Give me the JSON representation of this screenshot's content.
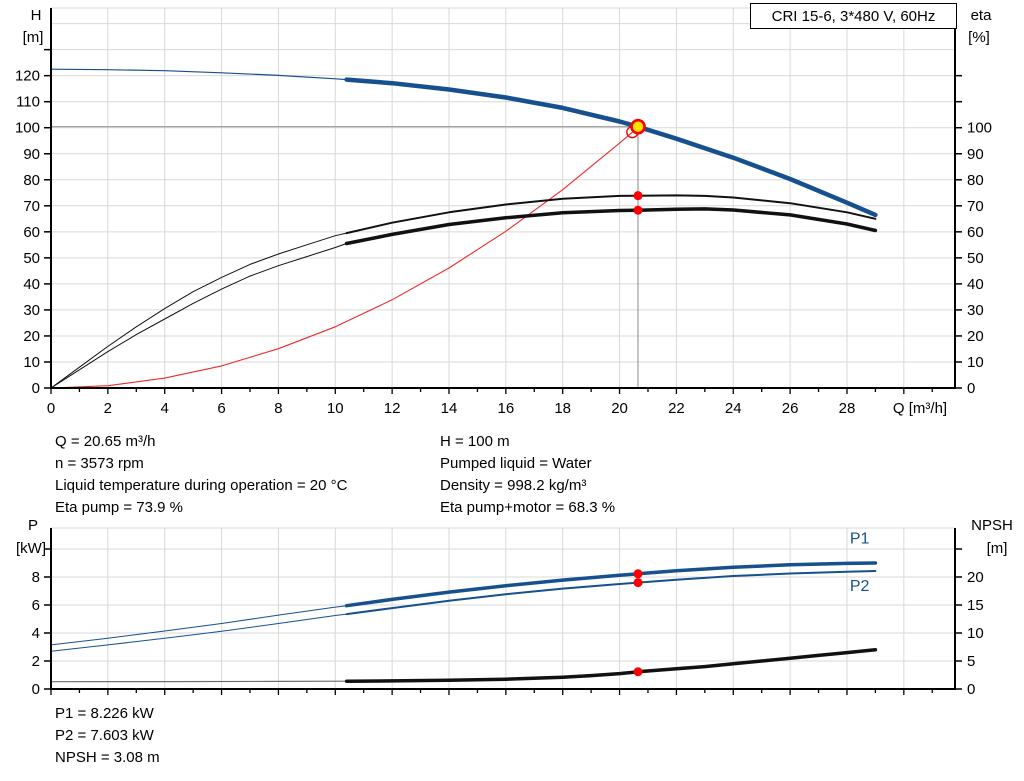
{
  "title_box": "CRI 15-6, 3*480 V, 60Hz",
  "colors": {
    "curve_blue": "#17508F",
    "curve_black": "#111111",
    "curve_red": "#ED2B2B",
    "marker_red": "#FF0000",
    "marker_yellow": "#FFE000",
    "grid": "#D9D9D9",
    "duty_line": "#8A8A8A",
    "npsh_low_gray": "#6F6F6F",
    "axis": "#000000"
  },
  "annotations": {
    "top_left": [
      "Q = 20.65 m³/h",
      "n = 3573 rpm",
      "Liquid temperature during operation = 20 °C",
      "Eta pump = 73.9 %"
    ],
    "top_right": [
      "H = 100 m",
      "Pumped liquid = Water",
      "Density = 998.2 kg/m³",
      "Eta pump+motor = 68.3 %"
    ],
    "bottom": [
      "P1 = 8.226 kW",
      "P2 = 7.603 kW",
      "NPSH = 3.08 m"
    ]
  },
  "chart_data": [
    {
      "id": "chart-qh",
      "type": "line",
      "title": "CRI 15-6, 3*480 V, 60Hz",
      "x": {
        "min": 0,
        "max": 31.8,
        "grid_step": 2,
        "grid_max": 30,
        "tick_step": 1,
        "tick_max": 31,
        "label_step": 2,
        "label_max": 28,
        "title": "Q [m³/h]"
      },
      "left": {
        "min": 0,
        "max": 146,
        "grid_step": 10,
        "grid_max": 140,
        "tick_max": 130,
        "label_max": 120,
        "title": [
          "H",
          "[m]"
        ]
      },
      "right": {
        "min": 0,
        "max": 146,
        "grid_step": 10,
        "tick_max": 120,
        "label_max": 100,
        "title": [
          "eta",
          "[%]"
        ]
      },
      "series": [
        {
          "name": "duty-vertical-line",
          "axis": "left",
          "color": "#8A8A8A",
          "width": 1,
          "points": [
            [
              20.65,
              0
            ],
            [
              20.65,
              100.4
            ]
          ]
        },
        {
          "name": "duty-horizontal-line",
          "axis": "left",
          "color": "#8A8A8A",
          "width": 1,
          "points": [
            [
              0,
              100.4
            ],
            [
              20.65,
              100.4
            ]
          ]
        },
        {
          "name": "system-curve",
          "axis": "left",
          "color": "#ED2B2B",
          "width": 1.1,
          "points": [
            [
              0,
              0
            ],
            [
              2,
              0.9
            ],
            [
              4,
              3.8
            ],
            [
              6,
              8.5
            ],
            [
              8,
              15.1
            ],
            [
              10,
              23.5
            ],
            [
              12,
              33.9
            ],
            [
              14,
              46.1
            ],
            [
              16,
              60.2
            ],
            [
              18,
              76.2
            ],
            [
              20,
              94.1
            ],
            [
              20.45,
              98.3
            ]
          ]
        },
        {
          "name": "eta-pump-curve-low",
          "axis": "right",
          "color": "#111111",
          "width": 1,
          "points": [
            [
              0,
              0
            ],
            [
              1,
              8
            ],
            [
              2,
              16
            ],
            [
              3,
              23.5
            ],
            [
              4,
              30.5
            ],
            [
              5,
              37
            ],
            [
              6,
              42.5
            ],
            [
              7,
              47.5
            ],
            [
              8,
              51.5
            ],
            [
              9,
              55
            ],
            [
              10,
              58.5
            ],
            [
              10.4,
              59.5
            ]
          ]
        },
        {
          "name": "eta-pump-curve",
          "axis": "right",
          "color": "#111111",
          "width": 2,
          "points": [
            [
              10.4,
              59.5
            ],
            [
              12,
              63.5
            ],
            [
              14,
              67.5
            ],
            [
              16,
              70.5
            ],
            [
              18,
              72.7
            ],
            [
              20,
              73.8
            ],
            [
              20.65,
              73.9
            ],
            [
              22,
              74
            ],
            [
              23,
              73.8
            ],
            [
              24,
              73.2
            ],
            [
              26,
              71
            ],
            [
              28,
              67.5
            ],
            [
              29,
              65
            ]
          ]
        },
        {
          "name": "eta-pump-motor-curve-low",
          "axis": "right",
          "color": "#111111",
          "width": 1,
          "points": [
            [
              0,
              0
            ],
            [
              1,
              7
            ],
            [
              2,
              14
            ],
            [
              3,
              20.5
            ],
            [
              4,
              26.5
            ],
            [
              5,
              32.5
            ],
            [
              6,
              38
            ],
            [
              7,
              43
            ],
            [
              8,
              47
            ],
            [
              9,
              50.5
            ],
            [
              10,
              54
            ],
            [
              10.4,
              55.5
            ]
          ]
        },
        {
          "name": "eta-pump-motor-curve",
          "axis": "right",
          "color": "#111111",
          "width": 3.5,
          "points": [
            [
              10.4,
              55.5
            ],
            [
              12,
              59
            ],
            [
              14,
              62.8
            ],
            [
              16,
              65.4
            ],
            [
              18,
              67.3
            ],
            [
              20,
              68.2
            ],
            [
              20.65,
              68.3
            ],
            [
              22,
              68.7
            ],
            [
              23,
              68.8
            ],
            [
              24,
              68.4
            ],
            [
              26,
              66.5
            ],
            [
              28,
              63
            ],
            [
              29,
              60.5
            ]
          ]
        },
        {
          "name": "qh-curve-low",
          "axis": "left",
          "color": "#17508F",
          "width": 1.2,
          "points": [
            [
              0,
              122.5
            ],
            [
              2,
              122.3
            ],
            [
              4,
              121.9
            ],
            [
              6,
              121.1
            ],
            [
              8,
              120.1
            ],
            [
              10,
              118.8
            ],
            [
              10.4,
              118.5
            ]
          ]
        },
        {
          "name": "qh-curve",
          "axis": "left",
          "color": "#17508F",
          "width": 4.5,
          "points": [
            [
              10.4,
              118.5
            ],
            [
              12,
              117.1
            ],
            [
              14,
              114.7
            ],
            [
              16,
              111.6
            ],
            [
              18,
              107.6
            ],
            [
              20,
              102.4
            ],
            [
              20.65,
              100.4
            ],
            [
              22,
              95.8
            ],
            [
              24,
              88.5
            ],
            [
              26,
              80.3
            ],
            [
              28,
              71.2
            ],
            [
              29,
              66.5
            ]
          ]
        }
      ],
      "markers": [
        {
          "name": "requested-duty-point",
          "axis": "left",
          "x": 20.45,
          "y": 98.3,
          "r": 5.5,
          "fill": "none",
          "stroke": "#FF0000",
          "stroke_width": 1.4,
          "interactable": true
        },
        {
          "name": "eta-pump-duty-dot",
          "axis": "right",
          "x": 20.65,
          "y": 73.9,
          "r": 4.5,
          "fill": "#FF0000",
          "stroke": "none",
          "stroke_width": 0,
          "interactable": false
        },
        {
          "name": "eta-pump-motor-duty-dot",
          "axis": "right",
          "x": 20.65,
          "y": 68.3,
          "r": 4.5,
          "fill": "#FF0000",
          "stroke": "none",
          "stroke_width": 0,
          "interactable": false
        },
        {
          "name": "duty-point-marker",
          "axis": "left",
          "x": 20.65,
          "y": 100.4,
          "r": 6.5,
          "fill": "#FFE000",
          "stroke": "#FF0000",
          "stroke_width": 2.6,
          "interactable": true
        }
      ],
      "inline_labels": []
    },
    {
      "id": "chart-power",
      "type": "line",
      "title": "",
      "x": {
        "min": 0,
        "max": 31.8,
        "grid_step": 2,
        "grid_max": 30,
        "tick_step": 1,
        "tick_max": 31,
        "label_step": 2,
        "label_max": -1,
        "title": ""
      },
      "left": {
        "min": 0,
        "max": 11.5,
        "grid_step": 2,
        "grid_max": 10,
        "tick_max": 10,
        "label_max": 8,
        "title": [
          "P",
          "[kW]"
        ]
      },
      "right": {
        "min": 0,
        "max": 28.75,
        "grid_step": 5,
        "tick_max": 25,
        "label_max": 20,
        "title": [
          "NPSH",
          "[m]"
        ]
      },
      "series": [
        {
          "name": "npsh-curve-low",
          "axis": "right",
          "color": "#6F6F6F",
          "width": 1.2,
          "points": [
            [
              0,
              1.3
            ],
            [
              4,
              1.32
            ],
            [
              8,
              1.36
            ],
            [
              10.4,
              1.4
            ]
          ]
        },
        {
          "name": "npsh-curve",
          "axis": "right",
          "color": "#111111",
          "width": 3.5,
          "points": [
            [
              10.4,
              1.4
            ],
            [
              12,
              1.45
            ],
            [
              14,
              1.55
            ],
            [
              16,
              1.75
            ],
            [
              18,
              2.1
            ],
            [
              19,
              2.4
            ],
            [
              20,
              2.75
            ],
            [
              20.65,
              3.08
            ],
            [
              22,
              3.6
            ],
            [
              23,
              4.0
            ],
            [
              24,
              4.5
            ],
            [
              25,
              5.0
            ],
            [
              26,
              5.5
            ],
            [
              27,
              6.0
            ],
            [
              28,
              6.5
            ],
            [
              29,
              7.0
            ]
          ]
        },
        {
          "name": "p2-curve-low",
          "axis": "left",
          "color": "#17508F",
          "width": 1,
          "points": [
            [
              0,
              2.7
            ],
            [
              2,
              3.15
            ],
            [
              4,
              3.62
            ],
            [
              6,
              4.12
            ],
            [
              8,
              4.68
            ],
            [
              10,
              5.25
            ],
            [
              10.4,
              5.35
            ]
          ]
        },
        {
          "name": "p2-curve",
          "axis": "left",
          "color": "#17508F",
          "width": 2,
          "points": [
            [
              10.4,
              5.35
            ],
            [
              12,
              5.78
            ],
            [
              14,
              6.3
            ],
            [
              16,
              6.77
            ],
            [
              18,
              7.17
            ],
            [
              20,
              7.5
            ],
            [
              20.65,
              7.6
            ],
            [
              22,
              7.8
            ],
            [
              24,
              8.07
            ],
            [
              26,
              8.25
            ],
            [
              28,
              8.38
            ],
            [
              29,
              8.43
            ]
          ]
        },
        {
          "name": "p1-curve-low",
          "axis": "left",
          "color": "#17508F",
          "width": 1,
          "points": [
            [
              0,
              3.15
            ],
            [
              2,
              3.63
            ],
            [
              4,
              4.14
            ],
            [
              6,
              4.68
            ],
            [
              8,
              5.28
            ],
            [
              10,
              5.85
            ],
            [
              10.4,
              5.95
            ]
          ]
        },
        {
          "name": "p1-curve",
          "axis": "left",
          "color": "#17508F",
          "width": 3.5,
          "points": [
            [
              10.4,
              5.95
            ],
            [
              12,
              6.4
            ],
            [
              14,
              6.92
            ],
            [
              16,
              7.38
            ],
            [
              18,
              7.78
            ],
            [
              20,
              8.12
            ],
            [
              20.65,
              8.23
            ],
            [
              22,
              8.45
            ],
            [
              24,
              8.7
            ],
            [
              26,
              8.87
            ],
            [
              28,
              8.97
            ],
            [
              29,
              9.0
            ]
          ]
        }
      ],
      "markers": [
        {
          "name": "p1-duty-dot",
          "axis": "left",
          "x": 20.65,
          "y": 8.23,
          "r": 4.5,
          "fill": "#FF0000",
          "stroke": "none",
          "stroke_width": 0,
          "interactable": false
        },
        {
          "name": "p2-duty-dot",
          "axis": "left",
          "x": 20.65,
          "y": 7.6,
          "r": 4.5,
          "fill": "#FF0000",
          "stroke": "none",
          "stroke_width": 0,
          "interactable": false
        },
        {
          "name": "npsh-duty-dot",
          "axis": "right",
          "x": 20.65,
          "y": 3.08,
          "r": 4.5,
          "fill": "#FF0000",
          "stroke": "none",
          "stroke_width": 0,
          "interactable": false
        }
      ],
      "inline_labels": [
        {
          "name": "p1-curve-label",
          "text": "P1",
          "axis": "left",
          "x": 28.1,
          "y": 10.4,
          "color": "#17508F"
        },
        {
          "name": "p2-curve-label",
          "text": "P2",
          "axis": "left",
          "x": 28.1,
          "y": 7.0,
          "color": "#17508F"
        }
      ]
    }
  ]
}
